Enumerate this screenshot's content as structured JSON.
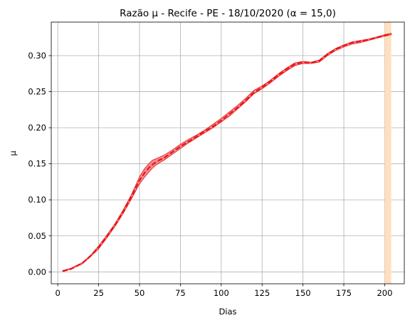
{
  "chart_data": {
    "type": "line",
    "title": "Razão μ - Recife - PE - 18/10/2020 (α = 15,0)",
    "xlabel": "Dias",
    "ylabel": "μ",
    "xlim": [
      -4,
      212
    ],
    "ylim": [
      -0.0165,
      0.3465
    ],
    "xticks": [
      0,
      25,
      50,
      75,
      100,
      125,
      150,
      175,
      200
    ],
    "xtick_labels": [
      "0",
      "25",
      "50",
      "75",
      "100",
      "125",
      "150",
      "175",
      "200"
    ],
    "yticks": [
      0.0,
      0.05,
      0.1,
      0.15,
      0.2,
      0.25,
      0.3
    ],
    "ytick_labels": [
      "0.00",
      "0.05",
      "0.10",
      "0.15",
      "0.20",
      "0.25",
      "0.30"
    ],
    "grid": true,
    "highlight_band": {
      "x_start": 200,
      "x_end": 204,
      "color": "#ffdfbf"
    },
    "series": [
      {
        "style": "dashed",
        "color": "#e8151b",
        "band_color": "#f08080",
        "x": [
          3,
          8,
          15,
          20,
          25,
          30,
          35,
          40,
          45,
          50,
          53,
          56,
          58,
          60,
          62,
          65,
          70,
          75,
          80,
          85,
          90,
          95,
          100,
          105,
          110,
          115,
          120,
          125,
          130,
          135,
          140,
          145,
          150,
          155,
          160,
          165,
          170,
          175,
          180,
          185,
          190,
          195,
          200,
          204
        ],
        "y": [
          0.001,
          0.004,
          0.012,
          0.022,
          0.034,
          0.049,
          0.065,
          0.083,
          0.104,
          0.127,
          0.137,
          0.145,
          0.149,
          0.152,
          0.155,
          0.158,
          0.166,
          0.174,
          0.181,
          0.188,
          0.195,
          0.202,
          0.21,
          0.219,
          0.228,
          0.238,
          0.249,
          0.256,
          0.264,
          0.273,
          0.281,
          0.288,
          0.291,
          0.29,
          0.293,
          0.302,
          0.309,
          0.314,
          0.318,
          0.32,
          0.322,
          0.325,
          0.328,
          0.33
        ],
        "lower": [
          0.001,
          0.004,
          0.011,
          0.021,
          0.032,
          0.047,
          0.063,
          0.081,
          0.101,
          0.122,
          0.131,
          0.139,
          0.144,
          0.148,
          0.151,
          0.155,
          0.163,
          0.171,
          0.179,
          0.186,
          0.193,
          0.2,
          0.208,
          0.216,
          0.226,
          0.236,
          0.247,
          0.254,
          0.262,
          0.271,
          0.279,
          0.286,
          0.289,
          0.289,
          0.291,
          0.3,
          0.307,
          0.312,
          0.316,
          0.318,
          0.321,
          0.324,
          0.327,
          0.329
        ],
        "upper": [
          0.002,
          0.005,
          0.013,
          0.023,
          0.036,
          0.051,
          0.067,
          0.086,
          0.107,
          0.132,
          0.143,
          0.151,
          0.155,
          0.157,
          0.159,
          0.162,
          0.169,
          0.177,
          0.184,
          0.19,
          0.197,
          0.205,
          0.213,
          0.222,
          0.231,
          0.241,
          0.252,
          0.258,
          0.266,
          0.275,
          0.283,
          0.29,
          0.292,
          0.291,
          0.294,
          0.303,
          0.31,
          0.315,
          0.319,
          0.321,
          0.323,
          0.326,
          0.329,
          0.331
        ]
      }
    ]
  }
}
